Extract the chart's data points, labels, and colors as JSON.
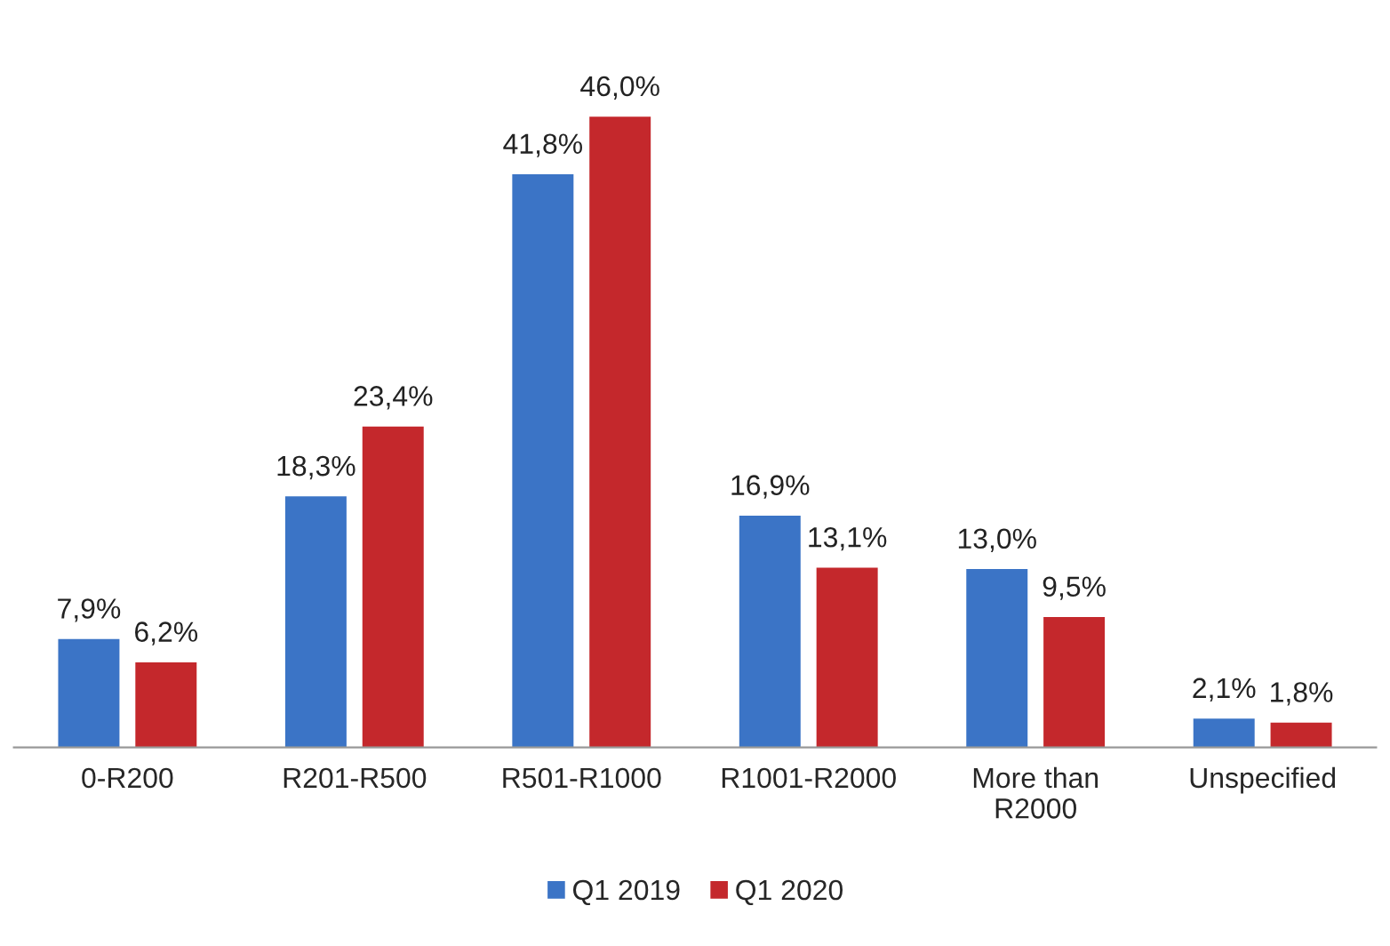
{
  "chart_data": {
    "type": "bar",
    "categories": [
      "0-R200",
      "R201-R500",
      "R501-R1000",
      "R1001-R2000",
      "More than\nR2000",
      "Unspecified"
    ],
    "series": [
      {
        "name": "Q1 2019",
        "color": "#3b74c6",
        "values": [
          7.9,
          18.3,
          41.8,
          16.9,
          13.0,
          2.1
        ],
        "value_labels": [
          "7,9%",
          "18,3%",
          "41,8%",
          "16,9%",
          "13,0%",
          "2,1%"
        ]
      },
      {
        "name": "Q1 2020",
        "color": "#c4282c",
        "values": [
          6.2,
          23.4,
          46.0,
          13.1,
          9.5,
          1.8
        ],
        "value_labels": [
          "6,2%",
          "23,4%",
          "46,0%",
          "13,1%",
          "9,5%",
          "1,8%"
        ]
      }
    ],
    "legend": "bottom",
    "grid": false
  }
}
